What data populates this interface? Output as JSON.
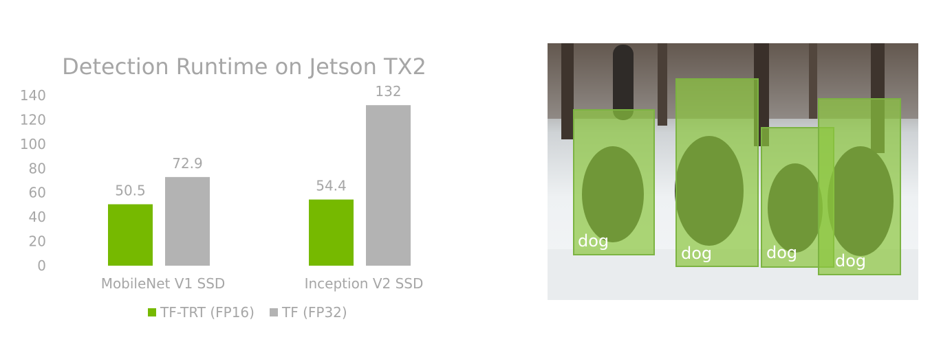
{
  "chart_data": {
    "type": "bar",
    "title": "Detection Runtime on Jetson TX2",
    "categories": [
      "MobileNet V1 SSD",
      "Inception V2 SSD"
    ],
    "series": [
      {
        "name": "TF-TRT (FP16)",
        "values": [
          50.5,
          54.4
        ],
        "labels": [
          "50.5",
          "54.4"
        ],
        "color": "#76b900"
      },
      {
        "name": "TF (FP32)",
        "values": [
          72.9,
          132
        ],
        "labels": [
          "72.9",
          "132"
        ],
        "color": "#b3b3b3"
      }
    ],
    "yticks": [
      "0",
      "20",
      "40",
      "60",
      "80",
      "100",
      "120",
      "140"
    ],
    "ylim": [
      0,
      140
    ],
    "grid": false,
    "legend": "bottom",
    "text_color": "#a6a6a6"
  },
  "photo": {
    "subject": "four sled dogs running on snow",
    "box_color": "#8cc63f",
    "detections": [
      {
        "label": "dog"
      },
      {
        "label": "dog"
      },
      {
        "label": "dog"
      },
      {
        "label": "dog"
      }
    ]
  }
}
